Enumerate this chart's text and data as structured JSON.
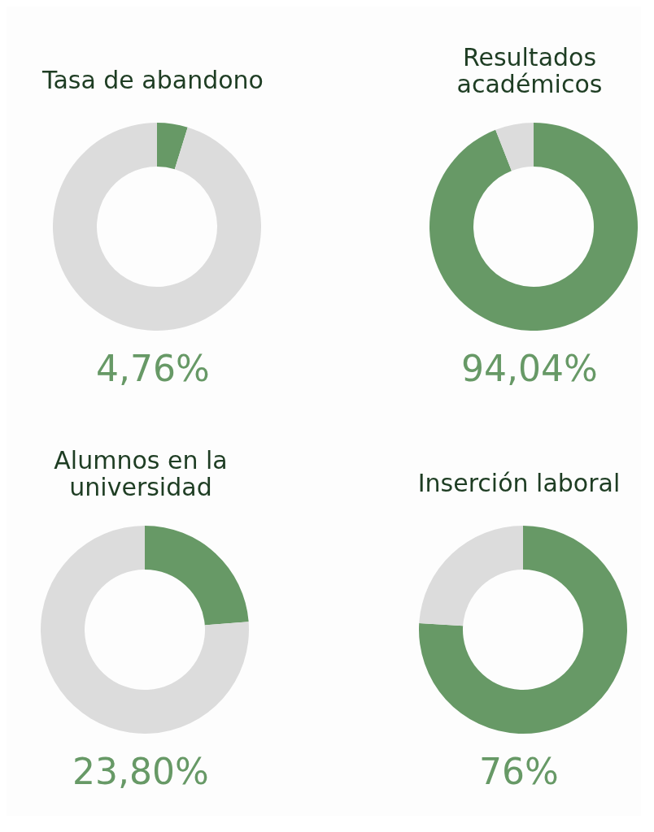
{
  "chart_data": [
    {
      "type": "donut",
      "title": "Tasa de abandono",
      "categories": [
        null,
        null
      ],
      "values": [
        4.76,
        95.24
      ],
      "colors": [
        "#679966",
        "#dcdcdc"
      ],
      "annotations": [
        "4,76%"
      ]
    },
    {
      "type": "donut",
      "title": "Resultados\nacadémicos",
      "categories": [
        null,
        null
      ],
      "values": [
        94.04,
        5.96
      ],
      "colors": [
        "#679966",
        "#dcdcdc"
      ],
      "annotations": [
        "94,04%"
      ]
    },
    {
      "type": "donut",
      "title": "Alumnos en la\nuniversidad",
      "categories": [
        null,
        null
      ],
      "values": [
        23.8,
        76.2
      ],
      "colors": [
        "#679966",
        "#dcdcdc"
      ],
      "annotations": [
        "23,80%"
      ]
    },
    {
      "type": "donut",
      "title": "Inserción laboral",
      "categories": [
        null,
        null
      ],
      "values": [
        76,
        24
      ],
      "colors": [
        "#679966",
        "#dcdcdc"
      ],
      "annotations": [
        "76%"
      ]
    }
  ]
}
